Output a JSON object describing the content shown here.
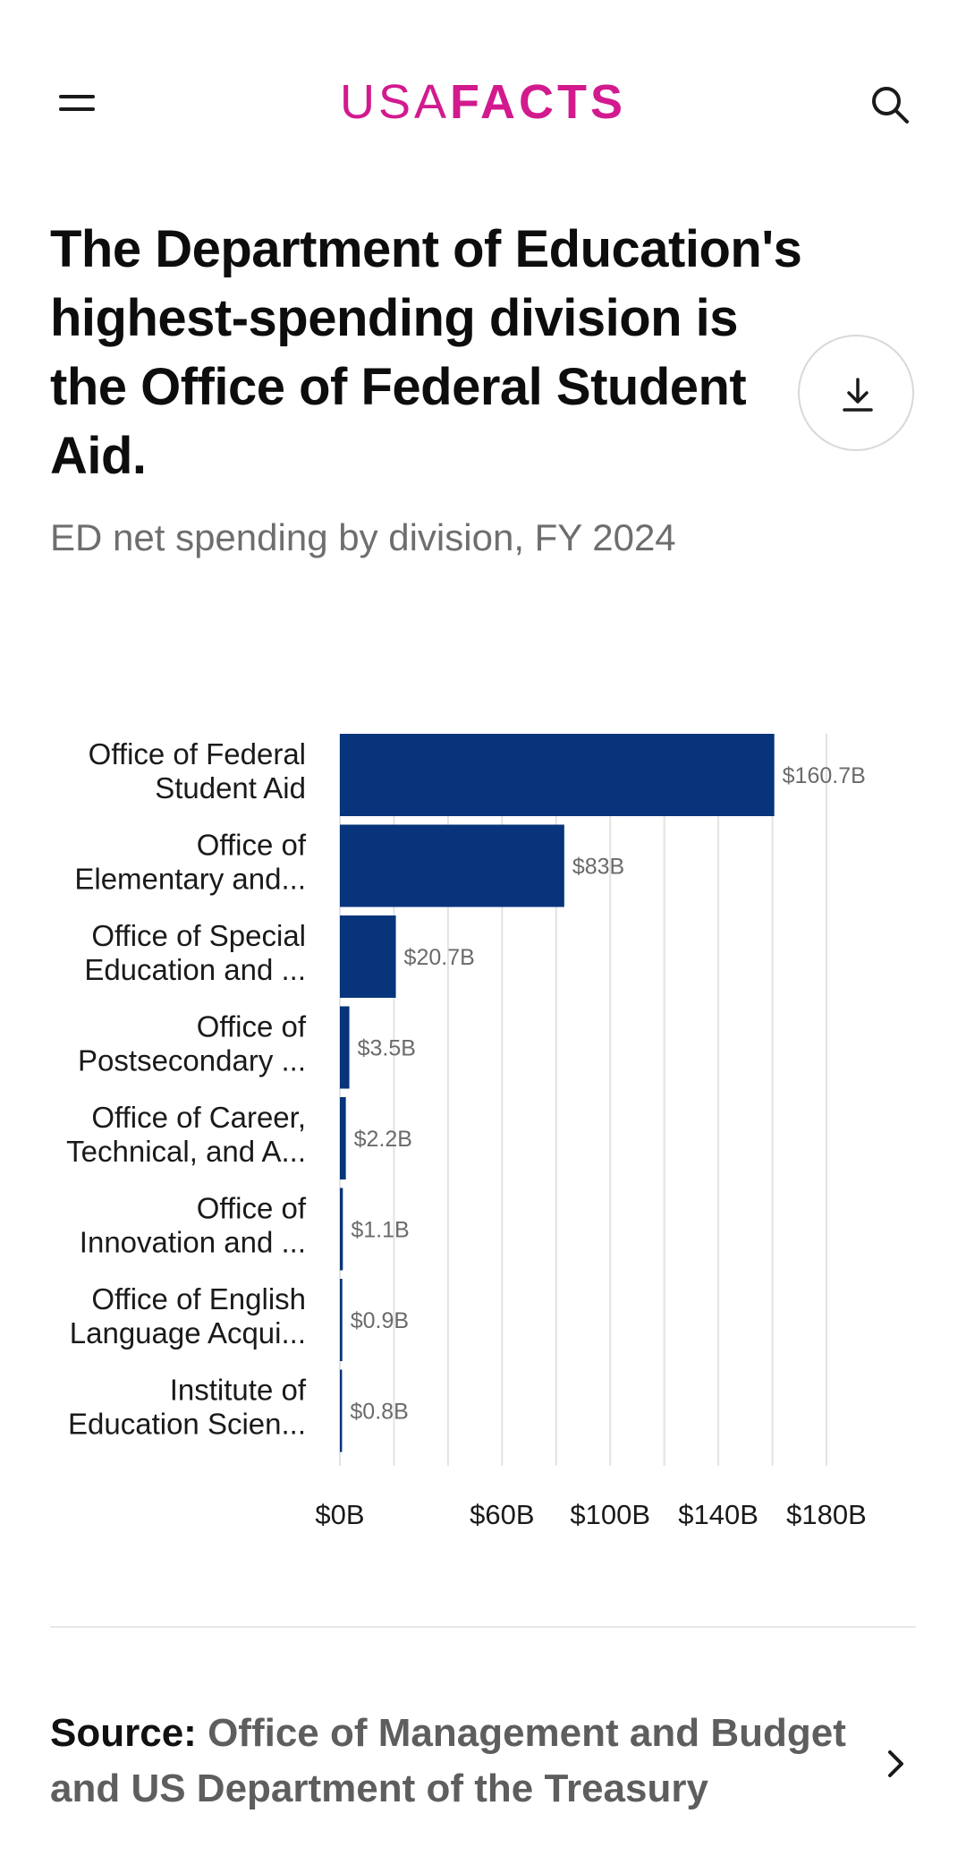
{
  "header": {
    "logo_part1": "USA",
    "logo_part2": "FACTS",
    "menu_icon": "hamburger-menu-icon",
    "search_icon": "search-icon",
    "brand_color": "#d21a8e"
  },
  "title": "The Department of Education's highest-spending division is the Office of Federal Student Aid.",
  "subtitle": "ED net spending by division, FY 2024",
  "download_icon": "download-icon",
  "chart_data": {
    "type": "bar",
    "orientation": "horizontal",
    "categories": [
      "Office of Federal Student Aid",
      "Office of Elementary and...",
      "Office of Special Education and ...",
      "Office of Postsecondary ...",
      "Office of Career, Technical, and A...",
      "Office of Innovation and ...",
      "Office of English Language Acqui...",
      "Institute of Education Scien..."
    ],
    "category_lines": [
      [
        "Office of Federal",
        "Student Aid"
      ],
      [
        "Office of",
        "Elementary and..."
      ],
      [
        "Office of Special",
        "Education and ..."
      ],
      [
        "Office of",
        "Postsecondary ..."
      ],
      [
        "Office of Career,",
        "Technical, and A..."
      ],
      [
        "Office of",
        "Innovation and ..."
      ],
      [
        "Office of English",
        "Language Acqui..."
      ],
      [
        "Institute of",
        "Education Scien..."
      ]
    ],
    "values": [
      160.7,
      83,
      20.7,
      3.5,
      2.2,
      1.1,
      0.9,
      0.8
    ],
    "value_labels": [
      "$160.7B",
      "$83B",
      "$20.7B",
      "$3.5B",
      "$2.2B",
      "$1.1B",
      "$0.9B",
      "$0.8B"
    ],
    "xlim": [
      0,
      180
    ],
    "ticks": [
      0,
      60,
      100,
      140,
      180
    ],
    "tick_labels": [
      "$0B",
      "$60B",
      "$100B",
      "$140B",
      "$180B"
    ],
    "gridlines": [
      0,
      20,
      40,
      60,
      80,
      100,
      120,
      140,
      160,
      180
    ],
    "grid": true,
    "bar_color": "#07347a"
  },
  "source": {
    "label": "Source:",
    "text": "Office of Management and Budget and US Department of the Treasury",
    "chevron_icon": "chevron-right-icon"
  }
}
